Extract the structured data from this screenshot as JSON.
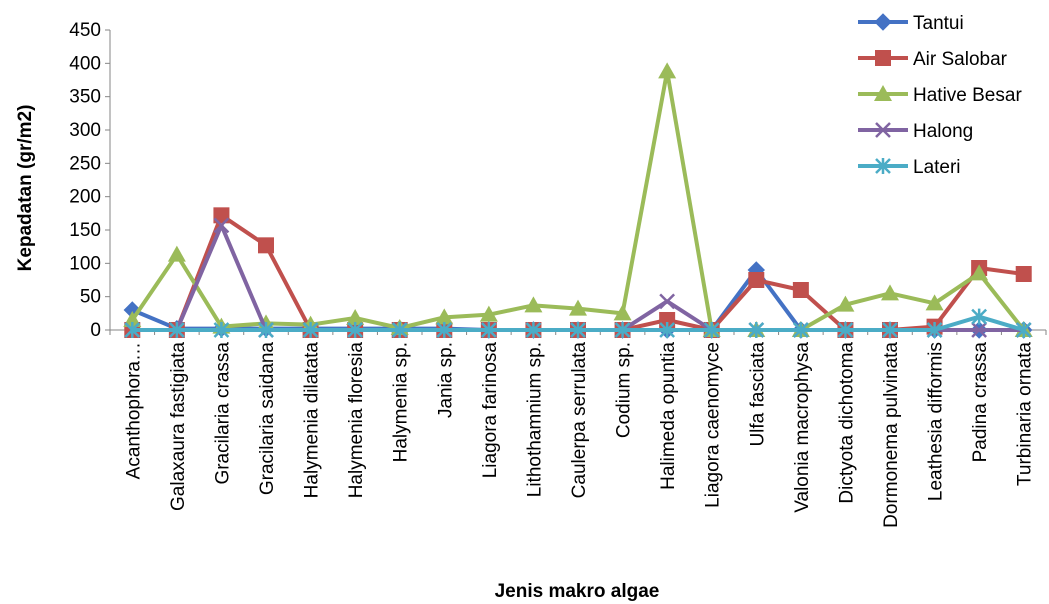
{
  "chart_data": {
    "type": "line",
    "title": "",
    "xlabel": "Jenis makro algae",
    "ylabel": "Kepadatan (gr/m2)",
    "ylim": [
      0,
      450
    ],
    "yticks": [
      0,
      50,
      100,
      150,
      200,
      250,
      300,
      350,
      400,
      450
    ],
    "grid": false,
    "legend_position": "top-right",
    "categories": [
      "Acanthophora…",
      "Galaxaura fastigiata",
      "Gracilaria crassa",
      "Gracilaria saidana",
      "Halymenia dilatata",
      "Halymenia floresia",
      "Halymenia sp.",
      "Jania sp.",
      "Liagora farinosa",
      "Lithothamnium sp.",
      "Caulerpa serrulata",
      "Codium sp.",
      "Halimeda opuntia",
      "Liagora caenomyce",
      "Ulfa fasciata",
      "Valonia macrophysa",
      "Dictyota dichotoma",
      "Dormonema pulvinata",
      "Leathesia difformis",
      "Padina crassa",
      "Turbinaria ornata"
    ],
    "series": [
      {
        "name": "Tantui",
        "color": "#4472C4",
        "marker": "diamond",
        "values": [
          30,
          2,
          2,
          2,
          2,
          2,
          2,
          2,
          0,
          0,
          0,
          0,
          0,
          0,
          90,
          0,
          0,
          0,
          0,
          0,
          0
        ]
      },
      {
        "name": "Air Salobar",
        "color": "#C0504D",
        "marker": "square",
        "values": [
          0,
          0,
          172,
          127,
          0,
          0,
          0,
          0,
          0,
          0,
          0,
          0,
          15,
          0,
          75,
          60,
          0,
          0,
          5,
          93,
          84
        ]
      },
      {
        "name": "Hative Besar",
        "color": "#9BBB59",
        "marker": "triangle",
        "values": [
          15,
          113,
          5,
          10,
          8,
          18,
          3,
          19,
          23,
          37,
          32,
          25,
          388,
          0,
          0,
          0,
          38,
          55,
          40,
          85,
          0
        ]
      },
      {
        "name": "Halong",
        "color": "#8064A2",
        "marker": "x",
        "values": [
          0,
          0,
          157,
          0,
          0,
          0,
          0,
          0,
          0,
          0,
          0,
          0,
          43,
          0,
          0,
          0,
          0,
          0,
          0,
          0,
          0
        ]
      },
      {
        "name": "Lateri",
        "color": "#4BACC6",
        "marker": "asterisk",
        "values": [
          0,
          0,
          0,
          0,
          0,
          0,
          0,
          0,
          0,
          0,
          0,
          0,
          0,
          0,
          0,
          0,
          0,
          0,
          0,
          20,
          0
        ]
      }
    ]
  }
}
